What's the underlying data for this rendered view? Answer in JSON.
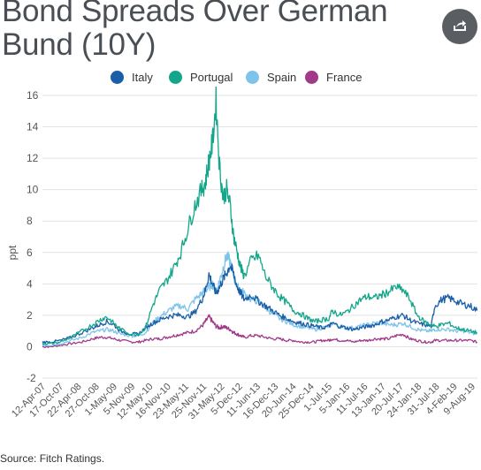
{
  "header": {
    "title": "Bond Spreads Over German Bund (10Y)",
    "share_icon": "share-icon"
  },
  "footer": {
    "source": "Source: Fitch Ratings."
  },
  "chart_data": {
    "type": "line",
    "title": "Bond Spreads Over German Bund (10Y)",
    "xlabel": "",
    "ylabel": "ppt",
    "ylim": [
      -2,
      16
    ],
    "yticks": [
      -2,
      0,
      2,
      4,
      6,
      8,
      10,
      12,
      14,
      16
    ],
    "grid": true,
    "legend_position": "top-center",
    "x_tick_labels": [
      "12-Apr-07",
      "17-Oct-07",
      "22-Apr-08",
      "27-Oct-08",
      "1-May-09",
      "5-Nov-09",
      "12-May-10",
      "16-Nov-10",
      "23-May-11",
      "25-Nov-11",
      "31-May-12",
      "5-Dec-12",
      "11-Jun-13",
      "16-Dec-13",
      "20-Jun-14",
      "25-Dec-14",
      "1-Jul-15",
      "5-Jan-16",
      "11-Jul-16",
      "13-Jan-17",
      "20-Jul-17",
      "24-Jan-18",
      "31-Jul-18",
      "4-Feb-19",
      "9-Aug-19"
    ],
    "x": [
      2007.28,
      2007.5,
      2007.8,
      2008.1,
      2008.4,
      2008.7,
      2008.9,
      2009.1,
      2009.3,
      2009.5,
      2009.8,
      2010.0,
      2010.2,
      2010.4,
      2010.6,
      2010.8,
      2011.0,
      2011.2,
      2011.4,
      2011.6,
      2011.8,
      2011.9,
      2012.0,
      2012.1,
      2012.2,
      2012.3,
      2012.4,
      2012.5,
      2012.6,
      2012.7,
      2012.8,
      2012.9,
      2013.0,
      2013.2,
      2013.4,
      2013.6,
      2013.8,
      2014.0,
      2014.2,
      2014.4,
      2014.6,
      2014.8,
      2015.0,
      2015.2,
      2015.4,
      2015.5,
      2015.7,
      2015.9,
      2016.1,
      2016.3,
      2016.5,
      2016.7,
      2016.9,
      2017.1,
      2017.3,
      2017.5,
      2017.7,
      2017.9,
      2018.1,
      2018.3,
      2018.4,
      2018.6,
      2018.8,
      2019.0,
      2019.2,
      2019.4,
      2019.6
    ],
    "series": [
      {
        "name": "Italy",
        "color": "#1a5ea8",
        "values": [
          0.3,
          0.3,
          0.4,
          0.6,
          0.9,
          1.2,
          1.4,
          1.6,
          1.4,
          1.0,
          0.8,
          0.8,
          1.2,
          1.5,
          1.7,
          1.9,
          2.0,
          2.0,
          1.9,
          2.2,
          3.0,
          3.6,
          4.6,
          4.0,
          3.4,
          3.8,
          4.3,
          4.7,
          5.2,
          4.6,
          3.8,
          3.4,
          3.0,
          3.3,
          2.9,
          2.6,
          2.3,
          2.0,
          1.8,
          1.6,
          1.5,
          1.4,
          1.3,
          1.2,
          1.3,
          1.5,
          1.3,
          1.2,
          1.1,
          1.2,
          1.3,
          1.4,
          1.6,
          1.7,
          1.9,
          2.0,
          1.7,
          1.5,
          1.4,
          1.3,
          2.6,
          3.0,
          3.1,
          2.9,
          2.7,
          2.6,
          2.3
        ]
      },
      {
        "name": "Portugal",
        "color": "#13a68b",
        "values": [
          0.2,
          0.2,
          0.3,
          0.6,
          1.0,
          1.4,
          1.7,
          1.9,
          1.5,
          1.1,
          0.8,
          0.8,
          1.2,
          2.6,
          3.6,
          4.2,
          5.0,
          6.0,
          7.5,
          9.0,
          10.0,
          10.5,
          11.8,
          13.0,
          15.6,
          11.5,
          9.5,
          10.0,
          9.0,
          7.0,
          6.0,
          5.0,
          4.5,
          5.5,
          5.8,
          4.5,
          3.8,
          3.2,
          2.8,
          2.3,
          2.1,
          1.8,
          1.6,
          1.7,
          1.8,
          2.3,
          2.0,
          2.2,
          2.6,
          3.0,
          3.2,
          3.1,
          3.3,
          3.5,
          3.8,
          3.6,
          3.0,
          2.0,
          1.6,
          1.4,
          1.3,
          1.4,
          1.5,
          1.2,
          1.1,
          1.0,
          0.9
        ]
      },
      {
        "name": "Spain",
        "color": "#7ec4ea",
        "values": [
          0.1,
          0.1,
          0.2,
          0.4,
          0.6,
          0.9,
          1.0,
          1.1,
          1.0,
          0.8,
          0.7,
          0.7,
          0.9,
          1.5,
          1.9,
          2.2,
          2.5,
          2.6,
          2.4,
          3.0,
          3.4,
          3.6,
          3.8,
          4.0,
          3.5,
          4.2,
          5.0,
          5.8,
          5.4,
          4.5,
          3.8,
          3.6,
          3.4,
          3.0,
          2.9,
          2.5,
          2.1,
          1.8,
          1.6,
          1.4,
          1.3,
          1.2,
          1.1,
          1.2,
          1.3,
          1.5,
          1.3,
          1.2,
          1.2,
          1.3,
          1.4,
          1.5,
          1.5,
          1.4,
          1.4,
          1.5,
          1.3,
          1.1,
          1.0,
          1.0,
          1.1,
          1.1,
          1.1,
          1.0,
          1.0,
          0.9,
          0.8
        ]
      },
      {
        "name": "France",
        "color": "#a23a8a",
        "values": [
          0.0,
          0.0,
          0.1,
          0.2,
          0.3,
          0.5,
          0.6,
          0.6,
          0.5,
          0.4,
          0.3,
          0.3,
          0.4,
          0.5,
          0.5,
          0.6,
          0.7,
          0.8,
          0.9,
          1.0,
          1.3,
          1.6,
          1.9,
          1.6,
          1.3,
          1.2,
          1.3,
          1.2,
          1.1,
          0.9,
          0.8,
          0.7,
          0.6,
          0.7,
          0.7,
          0.6,
          0.5,
          0.5,
          0.4,
          0.4,
          0.3,
          0.3,
          0.3,
          0.4,
          0.4,
          0.5,
          0.4,
          0.4,
          0.3,
          0.4,
          0.4,
          0.5,
          0.5,
          0.5,
          0.7,
          0.8,
          0.5,
          0.4,
          0.3,
          0.3,
          0.4,
          0.4,
          0.4,
          0.4,
          0.4,
          0.4,
          0.3
        ]
      }
    ]
  }
}
